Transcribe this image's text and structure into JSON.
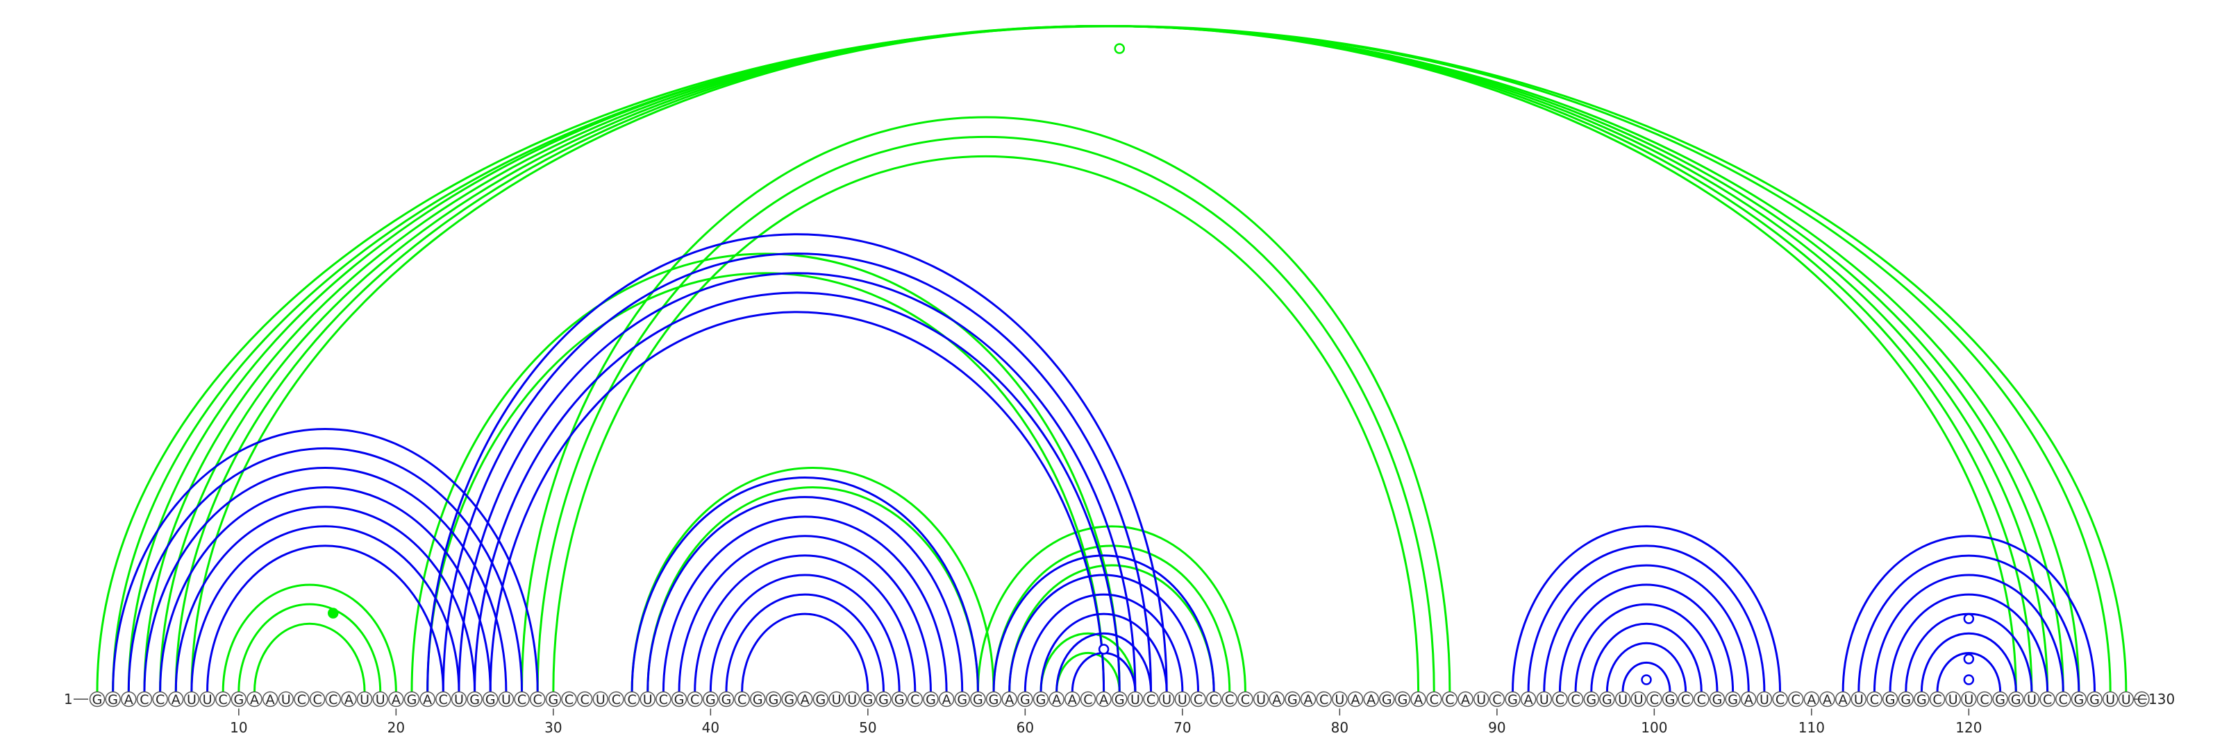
{
  "sequence": "GGACCAUUCGAAUCCCAUUAGACUGGUCCGCCUCCUCGCGGCGGGAGUUGGGCGAGGGAGGAACAGUCUUCCCCUAGACUAAGGACCAUCGAUCCGGUUCGCCGGAUCCAAAUCGGGCUUCGGUCCGGUUC",
  "start_label": "1",
  "end_label": "130",
  "ticks": [
    10,
    20,
    30,
    40,
    50,
    60,
    70,
    80,
    90,
    100,
    110,
    120
  ],
  "colors": {
    "structure_a": "#0000ee",
    "structure_b": "#00ee00"
  },
  "structure_a_pairs": [
    [
      2,
      29
    ],
    [
      3,
      28
    ],
    [
      4,
      27
    ],
    [
      5,
      26
    ],
    [
      6,
      25
    ],
    [
      7,
      24
    ],
    [
      8,
      23
    ],
    [
      22,
      69
    ],
    [
      23,
      68
    ],
    [
      24,
      67
    ],
    [
      25,
      66
    ],
    [
      26,
      65
    ],
    [
      35,
      57
    ],
    [
      36,
      56
    ],
    [
      37,
      55
    ],
    [
      38,
      54
    ],
    [
      39,
      53
    ],
    [
      40,
      52
    ],
    [
      41,
      51
    ],
    [
      42,
      50
    ],
    [
      58,
      72
    ],
    [
      59,
      71
    ],
    [
      60,
      70
    ],
    [
      61,
      69
    ],
    [
      62,
      68
    ],
    [
      63,
      67
    ],
    [
      91,
      108
    ],
    [
      92,
      107
    ],
    [
      93,
      106
    ],
    [
      94,
      105
    ],
    [
      95,
      104
    ],
    [
      96,
      103
    ],
    [
      97,
      102
    ],
    [
      98,
      101
    ],
    [
      112,
      128
    ],
    [
      113,
      127
    ],
    [
      114,
      126
    ],
    [
      115,
      125
    ],
    [
      116,
      124
    ],
    [
      117,
      123
    ],
    [
      118,
      122
    ]
  ],
  "structure_b_pairs": [
    [
      1,
      130
    ],
    [
      2,
      129
    ],
    [
      3,
      127
    ],
    [
      4,
      126
    ],
    [
      5,
      125
    ],
    [
      6,
      124
    ],
    [
      7,
      123
    ],
    [
      9,
      20
    ],
    [
      10,
      19
    ],
    [
      11,
      18
    ],
    [
      21,
      66
    ],
    [
      22,
      65
    ],
    [
      28,
      87
    ],
    [
      29,
      86
    ],
    [
      30,
      85
    ],
    [
      35,
      58
    ],
    [
      36,
      57
    ],
    [
      57,
      74
    ],
    [
      58,
      73
    ],
    [
      59,
      72
    ],
    [
      61,
      67
    ],
    [
      62,
      66
    ]
  ],
  "markers": [
    {
      "pos": 66,
      "color": "structure_b",
      "fill": "open"
    },
    {
      "pos": 16,
      "color": "structure_b",
      "fill": "solid"
    },
    {
      "pos": 65,
      "color": "structure_a",
      "fill": "open"
    },
    {
      "pos": 99.5,
      "color": "structure_a",
      "fill": "open"
    },
    {
      "pos": 120,
      "color": "structure_a",
      "fill": "open"
    }
  ]
}
